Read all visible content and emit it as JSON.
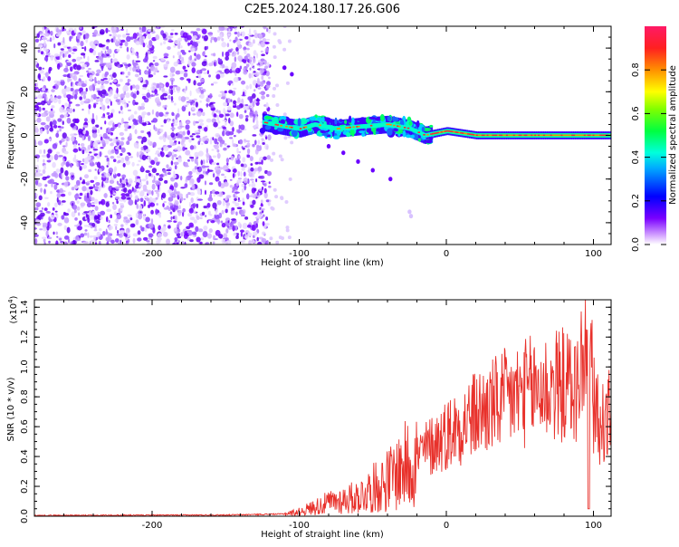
{
  "title": "C2E5.2024.180.17.26.G06",
  "chart_data": [
    {
      "type": "heatmap",
      "xlabel": "Height of straight line (km)",
      "ylabel": "Frequency (Hz)",
      "xlim": [
        -280,
        112
      ],
      "ylim": [
        -50,
        50
      ],
      "xticks": [
        -200,
        -100,
        0,
        100
      ],
      "yticks": [
        -40,
        -20,
        0,
        20,
        40
      ],
      "colorbar": {
        "label": "Normalized spectral amplitude",
        "range": [
          0.0,
          1.0
        ],
        "ticks": [
          "0.0",
          "0.2",
          "0.4",
          "0.6",
          "0.8"
        ]
      },
      "noise_region_x": [
        -280,
        -120
      ],
      "signal_track": [
        {
          "x": -125,
          "y": 6
        },
        {
          "x": -110,
          "y": 4
        },
        {
          "x": -100,
          "y": 3
        },
        {
          "x": -90,
          "y": 5
        },
        {
          "x": -75,
          "y": 3
        },
        {
          "x": -60,
          "y": 4
        },
        {
          "x": -40,
          "y": 5
        },
        {
          "x": -25,
          "y": 3
        },
        {
          "x": -15,
          "y": 0
        },
        {
          "x": 0,
          "y": 2
        },
        {
          "x": 20,
          "y": 0
        },
        {
          "x": 60,
          "y": 0
        },
        {
          "x": 112,
          "y": 0
        }
      ]
    },
    {
      "type": "line",
      "xlabel": "Height of straight line (km)",
      "ylabel": "SNR (10 * v/v)",
      "y_multiplier": "(x10",
      "y_multiplier_exp": "4",
      "y_multiplier_close": ")",
      "xlim": [
        -280,
        112
      ],
      "ylim": [
        0,
        1.45
      ],
      "xticks": [
        -200,
        -100,
        0,
        100
      ],
      "yticks": [
        0.0,
        0.2,
        0.4,
        0.6,
        0.8,
        1.0,
        1.2,
        1.4
      ],
      "ytick_labels": [
        "0.0",
        "0.2",
        "0.4",
        "0.6",
        "0.8",
        "1.0",
        "1.2",
        "1.4"
      ],
      "color": "#e8312b",
      "series_envelope": {
        "x": [
          -280,
          -150,
          -110,
          -100,
          -80,
          -60,
          -40,
          -20,
          0,
          20,
          40,
          60,
          80,
          90,
          95,
          100,
          105,
          112
        ],
        "y": [
          0.005,
          0.008,
          0.015,
          0.03,
          0.09,
          0.13,
          0.24,
          0.4,
          0.55,
          0.68,
          0.78,
          0.85,
          0.88,
          0.85,
          0.9,
          0.75,
          0.6,
          0.7
        ]
      }
    }
  ]
}
